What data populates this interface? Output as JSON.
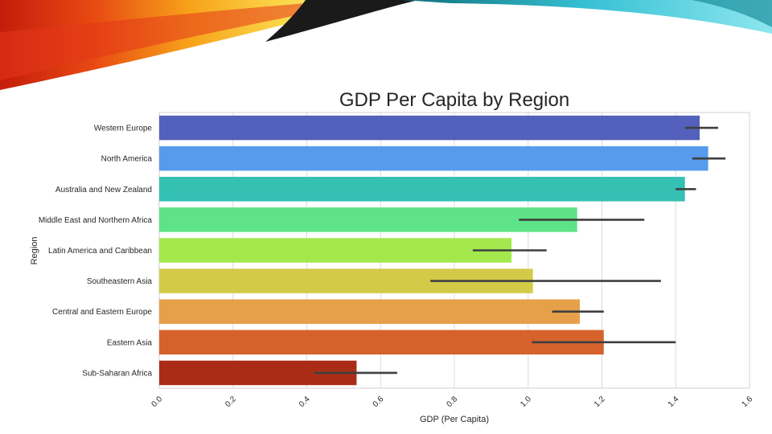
{
  "chart_data": {
    "type": "bar",
    "orientation": "horizontal",
    "title": "GDP Per Capita by Region",
    "xlabel": "GDP (Per Capita)",
    "ylabel": "Region",
    "xlim": [
      0,
      1.6
    ],
    "grid": true,
    "x_ticks": [
      "0.0",
      "0.2",
      "0.4",
      "0.6",
      "0.8",
      "1.0",
      "1.2",
      "1.4",
      "1.6"
    ],
    "categories": [
      "Western Europe",
      "North America",
      "Australia and New Zealand",
      "Middle East and Northern Africa",
      "Latin America and Caribbean",
      "Southeastern Asia",
      "Central and Eastern Europe",
      "Eastern Asia",
      "Sub-Saharan Africa"
    ],
    "values": [
      1.465,
      1.488,
      1.425,
      1.133,
      0.955,
      1.013,
      1.14,
      1.205,
      0.535
    ],
    "error_low": [
      1.425,
      1.445,
      1.4,
      0.975,
      0.85,
      0.735,
      1.065,
      1.01,
      0.42
    ],
    "error_high": [
      1.515,
      1.535,
      1.455,
      1.315,
      1.05,
      1.36,
      1.205,
      1.4,
      0.645
    ],
    "colors": [
      "#5361bd",
      "#579bec",
      "#35c0b4",
      "#5ee388",
      "#a4e84d",
      "#d3cb47",
      "#e6a04a",
      "#d6622b",
      "#ab2c16"
    ]
  }
}
